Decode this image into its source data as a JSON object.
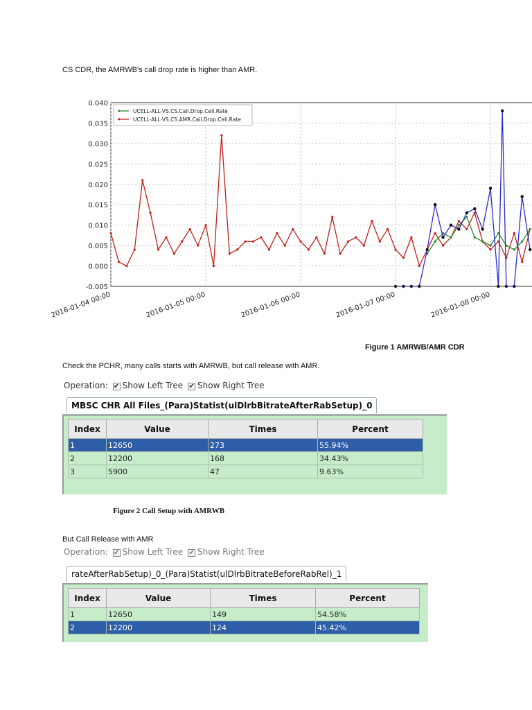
{
  "text": {
    "p1": "CS CDR, the AMRWB's call drop rate is higher than AMR.",
    "fig1": "Figure 1 AMRWB/AMR CDR",
    "p2": "Check the PCHR, many calls starts with AMRWB, but call release with AMR.",
    "fig2": "Figure 2 Call Setup with AMRWB",
    "p3": "But Call Release with AMR"
  },
  "tool": {
    "operation": "Operation:",
    "show_left": "Show Left Tree",
    "show_right": "Show Right Tree",
    "check": "✔",
    "headers": [
      "Index",
      "Value",
      "Times",
      "Percent"
    ]
  },
  "table1": {
    "tab": "MBSC CHR All Files_(Para)Statist(ulDlrbBitrateAfterRabSetup)_0",
    "rows": [
      [
        "1",
        "12650",
        "273",
        "55.94%"
      ],
      [
        "2",
        "12200",
        "168",
        "34.43%"
      ],
      [
        "3",
        "5900",
        "47",
        "9.63%"
      ]
    ],
    "selected_row": 0
  },
  "table2": {
    "tab": "rateAfterRabSetup)_0_(Para)Statist(ulDlrbBitrateBeforeRabRel)_1",
    "rows": [
      [
        "1",
        "12650",
        "149",
        "54.58%"
      ],
      [
        "2",
        "12200",
        "124",
        "45.42%"
      ]
    ],
    "selected_row": 1
  },
  "chart_data": {
    "type": "line",
    "ylim": [
      -0.005,
      0.04
    ],
    "yticks": [
      "0.040",
      "0.035",
      "0.030",
      "0.025",
      "0.020",
      "0.015",
      "0.010",
      "0.005",
      "0.000",
      "-0.005"
    ],
    "xlim": [
      "2016-01-04 00:00",
      "2016-01-08 10:30"
    ],
    "xticks": [
      "2016-01-04 00:00",
      "2016-01-05 00:00",
      "2016-01-06 00:00",
      "2016-01-07 00:00",
      "2016-01-08 00:00"
    ],
    "grid": true,
    "legend": "top-left",
    "series": [
      {
        "name": "UCELL-ALL-VS.CS.Call.Drop.Cell.Rate",
        "color": "#2a8a2a",
        "x": [
          "2016-01-07 08:00",
          "2016-01-07 10:00",
          "2016-01-07 12:00",
          "2016-01-07 14:00",
          "2016-01-07 16:00",
          "2016-01-07 18:00",
          "2016-01-07 20:00",
          "2016-01-07 22:00",
          "2016-01-08 00:00",
          "2016-01-08 02:00",
          "2016-01-08 04:00",
          "2016-01-08 06:00",
          "2016-01-08 08:00",
          "2016-01-08 10:00"
        ],
        "y": [
          0.003,
          0.006,
          0.008,
          0.007,
          0.01,
          0.012,
          0.007,
          0.006,
          0.005,
          0.008,
          0.005,
          0.004,
          0.006,
          0.009
        ]
      },
      {
        "name": "UCELL-ALL-VS.CS.AMR.Call.Drop.Cell.Rate",
        "color": "#c0201a",
        "x": [
          "2016-01-04 00:00",
          "2016-01-04 02:00",
          "2016-01-04 04:00",
          "2016-01-04 06:00",
          "2016-01-04 08:00",
          "2016-01-04 10:00",
          "2016-01-04 12:00",
          "2016-01-04 14:00",
          "2016-01-04 16:00",
          "2016-01-04 18:00",
          "2016-01-04 20:00",
          "2016-01-04 22:00",
          "2016-01-05 00:00",
          "2016-01-05 02:00",
          "2016-01-05 04:00",
          "2016-01-05 06:00",
          "2016-01-05 08:00",
          "2016-01-05 10:00",
          "2016-01-05 12:00",
          "2016-01-05 14:00",
          "2016-01-05 16:00",
          "2016-01-05 18:00",
          "2016-01-05 20:00",
          "2016-01-05 22:00",
          "2016-01-06 00:00",
          "2016-01-06 02:00",
          "2016-01-06 04:00",
          "2016-01-06 06:00",
          "2016-01-06 08:00",
          "2016-01-06 10:00",
          "2016-01-06 12:00",
          "2016-01-06 14:00",
          "2016-01-06 16:00",
          "2016-01-06 18:00",
          "2016-01-06 20:00",
          "2016-01-06 22:00",
          "2016-01-07 00:00",
          "2016-01-07 02:00",
          "2016-01-07 04:00",
          "2016-01-07 06:00",
          "2016-01-07 08:00",
          "2016-01-07 10:00",
          "2016-01-07 12:00",
          "2016-01-07 14:00",
          "2016-01-07 16:00",
          "2016-01-07 18:00",
          "2016-01-07 20:00",
          "2016-01-07 22:00",
          "2016-01-08 00:00",
          "2016-01-08 02:00",
          "2016-01-08 04:00",
          "2016-01-08 06:00",
          "2016-01-08 08:00",
          "2016-01-08 10:00"
        ],
        "y": [
          0.008,
          0.001,
          0.0,
          0.004,
          0.021,
          0.013,
          0.004,
          0.007,
          0.003,
          0.006,
          0.009,
          0.005,
          0.01,
          0.0,
          0.032,
          0.003,
          0.004,
          0.006,
          0.006,
          0.007,
          0.004,
          0.008,
          0.005,
          0.009,
          0.006,
          0.004,
          0.007,
          0.003,
          0.012,
          0.003,
          0.006,
          0.007,
          0.005,
          0.011,
          0.006,
          0.009,
          0.004,
          0.002,
          0.007,
          0.0,
          0.004,
          0.008,
          0.005,
          0.007,
          0.011,
          0.009,
          0.013,
          0.006,
          0.004,
          0.006,
          0.002,
          0.008,
          0.001,
          0.009
        ]
      },
      {
        "color": "#2a2ad0",
        "x": [
          "2016-01-07 00:00",
          "2016-01-07 02:00",
          "2016-01-07 04:00",
          "2016-01-07 06:00",
          "2016-01-07 08:00",
          "2016-01-07 10:00",
          "2016-01-07 12:00",
          "2016-01-07 14:00",
          "2016-01-07 16:00",
          "2016-01-07 18:00",
          "2016-01-07 20:00",
          "2016-01-07 22:00",
          "2016-01-08 00:00",
          "2016-01-08 02:00",
          "2016-01-08 03:00",
          "2016-01-08 04:00",
          "2016-01-08 06:00",
          "2016-01-08 08:00",
          "2016-01-08 10:00"
        ],
        "y": [
          -0.005,
          -0.005,
          -0.005,
          -0.005,
          0.004,
          0.015,
          0.007,
          0.01,
          0.009,
          0.013,
          0.014,
          0.009,
          0.019,
          -0.005,
          0.038,
          -0.005,
          -0.005,
          0.017,
          0.004
        ]
      }
    ]
  }
}
